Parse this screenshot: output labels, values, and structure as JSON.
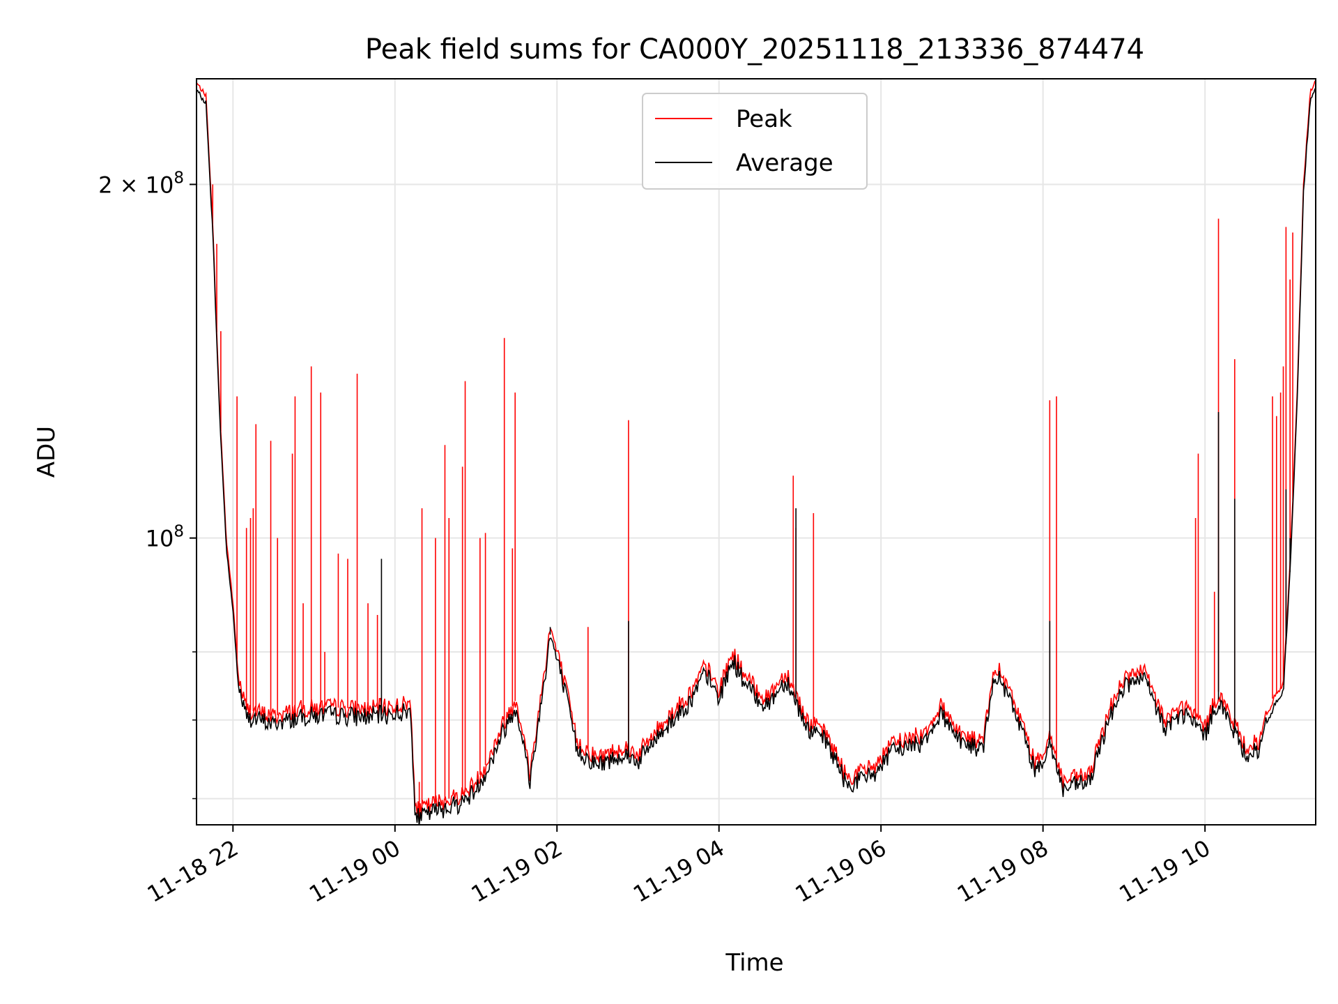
{
  "chart_data": {
    "type": "line",
    "title": "Peak field sums for CA000Y_20251118_213336_874474",
    "xlabel": "Time",
    "ylabel": "ADU",
    "yscale": "log",
    "xlim": [
      "2025-11-18 21:33",
      "2025-11-19 11:22"
    ],
    "ylim": [
      57000000,
      246000000
    ],
    "x_ticks": [
      {
        "t": "2025-11-18 22:00",
        "label": "11-18 22"
      },
      {
        "t": "2025-11-19 00:00",
        "label": "11-19 00"
      },
      {
        "t": "2025-11-19 02:00",
        "label": "11-19 02"
      },
      {
        "t": "2025-11-19 04:00",
        "label": "11-19 04"
      },
      {
        "t": "2025-11-19 06:00",
        "label": "11-19 06"
      },
      {
        "t": "2025-11-19 08:00",
        "label": "11-19 08"
      },
      {
        "t": "2025-11-19 10:00",
        "label": "11-19 10"
      }
    ],
    "y_major_ticks": [
      {
        "v": 100000000,
        "base": "10",
        "exp": "8",
        "coef": ""
      },
      {
        "v": 200000000,
        "base": "10",
        "exp": "8",
        "coef": "2 × "
      }
    ],
    "y_minor_ticks": [
      60000000,
      70000000,
      80000000
    ],
    "grid": true,
    "legend_position": "top-center",
    "series": [
      {
        "name": "Peak",
        "color": "#ff0000",
        "baseline": [
          [
            "2025-11-18 21:33",
            244000000
          ],
          [
            "2025-11-18 21:40",
            238000000
          ],
          [
            "2025-11-18 21:45",
            185000000
          ],
          [
            "2025-11-18 21:50",
            130000000
          ],
          [
            "2025-11-18 21:55",
            100000000
          ],
          [
            "2025-11-18 22:00",
            88000000
          ],
          [
            "2025-11-18 22:04",
            76000000
          ],
          [
            "2025-11-18 22:10",
            71500000
          ],
          [
            "2025-11-18 22:30",
            70500000
          ],
          [
            "2025-11-18 22:50",
            71500000
          ],
          [
            "2025-11-18 23:10",
            71800000
          ],
          [
            "2025-11-18 23:40",
            71500000
          ],
          [
            "2025-11-19 00:00",
            72000000
          ],
          [
            "2025-11-19 00:12",
            72300000
          ],
          [
            "2025-11-19 00:15",
            58500000
          ],
          [
            "2025-11-19 00:30",
            59500000
          ],
          [
            "2025-11-19 00:50",
            60500000
          ],
          [
            "2025-11-19 01:00",
            62000000
          ],
          [
            "2025-11-19 01:10",
            65000000
          ],
          [
            "2025-11-19 01:20",
            69500000
          ],
          [
            "2025-11-19 01:30",
            73000000
          ],
          [
            "2025-11-19 01:40",
            63000000
          ],
          [
            "2025-11-19 01:50",
            76000000
          ],
          [
            "2025-11-19 01:55",
            84000000
          ],
          [
            "2025-11-19 02:05",
            76000000
          ],
          [
            "2025-11-19 02:15",
            67000000
          ],
          [
            "2025-11-19 02:30",
            65000000
          ],
          [
            "2025-11-19 02:50",
            66500000
          ],
          [
            "2025-11-19 03:00",
            65500000
          ],
          [
            "2025-11-19 03:20",
            70000000
          ],
          [
            "2025-11-19 03:40",
            74000000
          ],
          [
            "2025-11-19 03:50",
            78000000
          ],
          [
            "2025-11-19 04:00",
            74000000
          ],
          [
            "2025-11-19 04:10",
            80000000
          ],
          [
            "2025-11-19 04:20",
            76000000
          ],
          [
            "2025-11-19 04:35",
            73000000
          ],
          [
            "2025-11-19 04:50",
            77000000
          ],
          [
            "2025-11-19 05:05",
            70000000
          ],
          [
            "2025-11-19 05:20",
            68000000
          ],
          [
            "2025-11-19 05:35",
            62500000
          ],
          [
            "2025-11-19 05:55",
            64000000
          ],
          [
            "2025-11-19 06:10",
            67000000
          ],
          [
            "2025-11-19 06:30",
            68000000
          ],
          [
            "2025-11-19 06:45",
            72000000
          ],
          [
            "2025-11-19 07:00",
            68000000
          ],
          [
            "2025-11-19 07:15",
            67000000
          ],
          [
            "2025-11-19 07:25",
            78000000
          ],
          [
            "2025-11-19 07:40",
            72000000
          ],
          [
            "2025-11-19 07:55",
            64000000
          ],
          [
            "2025-11-19 08:05",
            68000000
          ],
          [
            "2025-11-19 08:15",
            62000000
          ],
          [
            "2025-11-19 08:35",
            63000000
          ],
          [
            "2025-11-19 08:50",
            72000000
          ],
          [
            "2025-11-19 09:00",
            76000000
          ],
          [
            "2025-11-19 09:15",
            77000000
          ],
          [
            "2025-11-19 09:30",
            70000000
          ],
          [
            "2025-11-19 09:45",
            72000000
          ],
          [
            "2025-11-19 10:00",
            69000000
          ],
          [
            "2025-11-19 10:10",
            74000000
          ],
          [
            "2025-11-19 10:20",
            70000000
          ],
          [
            "2025-11-19 10:30",
            66500000
          ],
          [
            "2025-11-19 10:40",
            67000000
          ],
          [
            "2025-11-19 10:50",
            73000000
          ],
          [
            "2025-11-19 10:58",
            75000000
          ],
          [
            "2025-11-19 11:03",
            95000000
          ],
          [
            "2025-11-19 11:08",
            130000000
          ],
          [
            "2025-11-19 11:13",
            200000000
          ],
          [
            "2025-11-19 11:18",
            240000000
          ],
          [
            "2025-11-19 11:22",
            245000000
          ]
        ],
        "spikes": [
          [
            "2025-11-18 21:45",
            200000000
          ],
          [
            "2025-11-18 21:48",
            178000000
          ],
          [
            "2025-11-18 21:51",
            150000000
          ],
          [
            "2025-11-18 22:03",
            132000000
          ],
          [
            "2025-11-18 22:10",
            102000000
          ],
          [
            "2025-11-18 22:13",
            104000000
          ],
          [
            "2025-11-18 22:15",
            106000000
          ],
          [
            "2025-11-18 22:17",
            125000000
          ],
          [
            "2025-11-18 22:28",
            121000000
          ],
          [
            "2025-11-18 22:33",
            100000000
          ],
          [
            "2025-11-18 22:44",
            118000000
          ],
          [
            "2025-11-18 22:46",
            132000000
          ],
          [
            "2025-11-18 22:52",
            88000000
          ],
          [
            "2025-11-18 22:58",
            140000000
          ],
          [
            "2025-11-18 23:05",
            133000000
          ],
          [
            "2025-11-18 23:08",
            80000000
          ],
          [
            "2025-11-18 23:18",
            97000000
          ],
          [
            "2025-11-18 23:25",
            96000000
          ],
          [
            "2025-11-18 23:32",
            138000000
          ],
          [
            "2025-11-18 23:40",
            88000000
          ],
          [
            "2025-11-18 23:47",
            86000000
          ],
          [
            "2025-11-19 00:18",
            62000000
          ],
          [
            "2025-11-19 00:20",
            106000000
          ],
          [
            "2025-11-19 00:30",
            100000000
          ],
          [
            "2025-11-19 00:37",
            120000000
          ],
          [
            "2025-11-19 00:40",
            104000000
          ],
          [
            "2025-11-19 00:50",
            115000000
          ],
          [
            "2025-11-19 00:52",
            136000000
          ],
          [
            "2025-11-19 01:03",
            100000000
          ],
          [
            "2025-11-19 01:07",
            101000000
          ],
          [
            "2025-11-19 01:21",
            148000000
          ],
          [
            "2025-11-19 01:27",
            98000000
          ],
          [
            "2025-11-19 01:29",
            133000000
          ],
          [
            "2025-11-19 02:23",
            84000000
          ],
          [
            "2025-11-19 02:53",
            126000000
          ],
          [
            "2025-11-19 04:55",
            113000000
          ],
          [
            "2025-11-19 04:57",
            102000000
          ],
          [
            "2025-11-19 05:10",
            105000000
          ],
          [
            "2025-11-19 08:05",
            131000000
          ],
          [
            "2025-11-19 08:10",
            132000000
          ],
          [
            "2025-11-19 09:53",
            104000000
          ],
          [
            "2025-11-19 09:55",
            118000000
          ],
          [
            "2025-11-19 10:07",
            90000000
          ],
          [
            "2025-11-19 10:10",
            187000000
          ],
          [
            "2025-11-19 10:22",
            142000000
          ],
          [
            "2025-11-19 10:50",
            132000000
          ],
          [
            "2025-11-19 10:53",
            127000000
          ],
          [
            "2025-11-19 10:56",
            133000000
          ],
          [
            "2025-11-19 10:58",
            140000000
          ],
          [
            "2025-11-19 11:00",
            184000000
          ],
          [
            "2025-11-19 11:03",
            166000000
          ],
          [
            "2025-11-19 11:05",
            182000000
          ]
        ]
      },
      {
        "name": "Average",
        "color": "#000000",
        "baseline_offset_ratio": 0.985,
        "spikes": [
          [
            "2025-11-18 23:50",
            96000000
          ],
          [
            "2025-11-19 01:55",
            84000000
          ],
          [
            "2025-11-19 02:53",
            85000000
          ],
          [
            "2025-11-19 04:57",
            106000000
          ],
          [
            "2025-11-19 08:05",
            85000000
          ],
          [
            "2025-11-19 10:10",
            128000000
          ],
          [
            "2025-11-19 10:22",
            108000000
          ],
          [
            "2025-11-19 11:00",
            110000000
          ],
          [
            "2025-11-19 11:03",
            100000000
          ]
        ]
      }
    ]
  }
}
